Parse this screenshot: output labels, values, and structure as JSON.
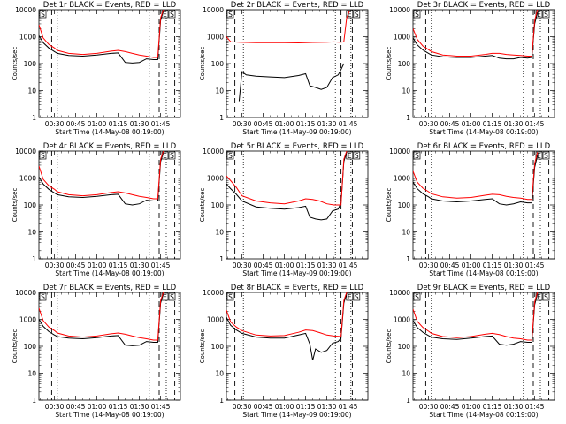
{
  "chart_data": {
    "type": "line",
    "layout": "3x3 grid",
    "y_scale": "log",
    "ylim": [
      1,
      10000
    ],
    "y_ticks": [
      "1",
      "10",
      "100",
      "1000",
      "10000"
    ],
    "x_ticks": [
      "00:30",
      "00:45",
      "01:00",
      "01:15",
      "01:30",
      "01:45"
    ],
    "x_ticks_minutes": [
      30,
      45,
      60,
      75,
      90,
      105
    ],
    "xlim_minutes": [
      19,
      119
    ],
    "ylabel": "Counts/sec",
    "legend_note": "BLACK = Events, RED = LLD",
    "series_colors": {
      "Events": "#000000",
      "LLD": "#ff0000"
    },
    "panels": [
      {
        "title": "Det 1r BLACK = Events, RED = LLD",
        "xlabel": "Start Time (14-May-08 00:19:00)",
        "markers": {
          "dashed": [
            28,
            104,
            115
          ],
          "dotted": [
            32,
            97,
            109
          ],
          "left_box_label": "S",
          "right_box_labels": [
            "E",
            "S"
          ]
        },
        "series": [
          {
            "name": "Events",
            "x": [
              19,
              22,
              26,
              30,
              32,
              40,
              50,
              60,
              70,
              75,
              80,
              85,
              90,
              95,
              100,
              103,
              105,
              107
            ],
            "y": [
              1100,
              600,
              380,
              280,
              240,
              200,
              190,
              210,
              240,
              250,
              110,
              105,
              110,
              150,
              140,
              140,
              4000,
              9000
            ]
          },
          {
            "name": "LLD",
            "x": [
              19,
              22,
              26,
              30,
              32,
              40,
              50,
              60,
              70,
              75,
              80,
              85,
              90,
              95,
              100,
              103,
              105,
              107
            ],
            "y": [
              2800,
              900,
              520,
              380,
              310,
              240,
              220,
              240,
              290,
              310,
              280,
              240,
              210,
              190,
              170,
              170,
              5000,
              10000
            ]
          }
        ]
      },
      {
        "title": "Det 2r BLACK = Events, RED = LLD",
        "xlabel": "Start Time (14-May-09 00:19:00)",
        "markers": {
          "dashed": [
            25,
            100,
            108
          ],
          "dotted": [
            31,
            96,
            107
          ],
          "left_box_label": "S",
          "right_box_labels": [
            "E",
            "S"
          ]
        },
        "series": [
          {
            "name": "Events",
            "x": [
              28,
              30,
              33,
              40,
              50,
              60,
              70,
              75,
              78,
              82,
              86,
              90,
              94,
              98,
              100,
              102
            ],
            "y": [
              4,
              50,
              38,
              34,
              32,
              30,
              36,
              42,
              15,
              13,
              11,
              13,
              30,
              38,
              60,
              100
            ]
          },
          {
            "name": "LLD",
            "x": [
              19,
              22,
              28,
              40,
              50,
              60,
              70,
              80,
              90,
              95,
              100,
              102,
              104,
              106
            ],
            "y": [
              1000,
              650,
              620,
              600,
              600,
              600,
              590,
              610,
              620,
              640,
              620,
              650,
              5000,
              9000
            ]
          }
        ]
      },
      {
        "title": "Det 3r BLACK = Events, RED = LLD",
        "xlabel": "Start Time (14-May-08 00:19:00)",
        "markers": {
          "dashed": [
            28,
            104,
            115
          ],
          "dotted": [
            32,
            97,
            109
          ],
          "left_box_label": "S",
          "right_box_labels": [
            "E",
            "S"
          ]
        },
        "series": [
          {
            "name": "Events",
            "x": [
              19,
              22,
              26,
              30,
              32,
              40,
              50,
              60,
              70,
              75,
              80,
              85,
              90,
              95,
              100,
              103,
              105,
              107
            ],
            "y": [
              900,
              500,
              320,
              240,
              210,
              180,
              170,
              170,
              190,
              200,
              160,
              150,
              150,
              170,
              160,
              170,
              3000,
              8000
            ]
          },
          {
            "name": "LLD",
            "x": [
              19,
              22,
              26,
              30,
              32,
              40,
              50,
              60,
              70,
              75,
              80,
              85,
              90,
              95,
              100,
              103,
              105,
              107
            ],
            "y": [
              2000,
              800,
              450,
              330,
              280,
              210,
              190,
              190,
              220,
              240,
              240,
              220,
              210,
              200,
              190,
              190,
              4000,
              10000
            ]
          }
        ]
      },
      {
        "title": "Det 4r BLACK = Events, RED = LLD",
        "xlabel": "Start Time (14-May-08 00:19:00)",
        "markers": {
          "dashed": [
            28,
            104,
            115
          ],
          "dotted": [
            32,
            97,
            109
          ],
          "left_box_label": "S",
          "right_box_labels": [
            "E",
            "S"
          ]
        },
        "series": [
          {
            "name": "Events",
            "x": [
              19,
              22,
              26,
              30,
              32,
              40,
              50,
              60,
              70,
              75,
              80,
              85,
              90,
              95,
              100,
              103,
              105,
              107
            ],
            "y": [
              1100,
              600,
              380,
              280,
              240,
              200,
              190,
              210,
              240,
              250,
              110,
              100,
              110,
              150,
              140,
              140,
              4000,
              9000
            ]
          },
          {
            "name": "LLD",
            "x": [
              19,
              22,
              26,
              30,
              32,
              40,
              50,
              60,
              70,
              75,
              80,
              85,
              90,
              95,
              100,
              103,
              105,
              107
            ],
            "y": [
              2800,
              900,
              520,
              380,
              310,
              240,
              220,
              240,
              290,
              310,
              280,
              240,
              210,
              190,
              170,
              170,
              5000,
              10000
            ]
          }
        ]
      },
      {
        "title": "Det 5r BLACK = Events, RED = LLD",
        "xlabel": "Start Time (14-May-09 00:19:00)",
        "markers": {
          "dashed": [
            25,
            100,
            108
          ],
          "dotted": [
            31,
            96,
            107
          ],
          "left_box_label": "S",
          "right_box_labels": [
            "E",
            "S"
          ]
        },
        "series": [
          {
            "name": "Events",
            "x": [
              19,
              22,
              26,
              30,
              40,
              50,
              60,
              70,
              75,
              78,
              82,
              86,
              90,
              94,
              98,
              100,
              102,
              104
            ],
            "y": [
              600,
              400,
              250,
              140,
              85,
              75,
              70,
              80,
              90,
              35,
              30,
              28,
              30,
              60,
              70,
              120,
              4000,
              9000
            ]
          },
          {
            "name": "LLD",
            "x": [
              19,
              22,
              26,
              30,
              40,
              50,
              60,
              70,
              75,
              80,
              85,
              90,
              95,
              100,
              102,
              104
            ],
            "y": [
              1200,
              800,
              450,
              220,
              140,
              120,
              110,
              140,
              170,
              160,
              140,
              110,
              100,
              100,
              5000,
              10000
            ]
          }
        ]
      },
      {
        "title": "Det 6r BLACK = Events, RED = LLD",
        "xlabel": "Start Time (14-May-08 00:19:00)",
        "markers": {
          "dashed": [
            28,
            104,
            115
          ],
          "dotted": [
            32,
            97,
            109
          ],
          "left_box_label": "S",
          "right_box_labels": [
            "E",
            "S"
          ]
        },
        "series": [
          {
            "name": "Events",
            "x": [
              19,
              22,
              26,
              30,
              32,
              40,
              50,
              60,
              70,
              75,
              80,
              85,
              90,
              95,
              100,
              103,
              105,
              107
            ],
            "y": [
              700,
              400,
              260,
              200,
              170,
              140,
              130,
              140,
              160,
              170,
              110,
              100,
              110,
              130,
              120,
              120,
              2500,
              7000
            ]
          },
          {
            "name": "LLD",
            "x": [
              19,
              22,
              26,
              30,
              32,
              40,
              50,
              60,
              70,
              75,
              80,
              85,
              90,
              95,
              100,
              103,
              105,
              107
            ],
            "y": [
              1800,
              700,
              420,
              310,
              260,
              200,
              180,
              190,
              230,
              250,
              240,
              210,
              190,
              180,
              160,
              160,
              3500,
              9000
            ]
          }
        ]
      },
      {
        "title": "Det 7r BLACK = Events, RED = LLD",
        "xlabel": "Start Time (14-May-08 00:19:00)",
        "markers": {
          "dashed": [
            28,
            104,
            115
          ],
          "dotted": [
            32,
            97,
            109
          ],
          "left_box_label": "S",
          "right_box_labels": [
            "E",
            "S"
          ]
        },
        "series": [
          {
            "name": "Events",
            "x": [
              19,
              22,
              26,
              30,
              32,
              40,
              50,
              60,
              70,
              75,
              80,
              85,
              90,
              95,
              100,
              103,
              105,
              107
            ],
            "y": [
              1000,
              550,
              350,
              260,
              230,
              200,
              190,
              210,
              240,
              250,
              110,
              105,
              110,
              150,
              140,
              140,
              4000,
              9000
            ]
          },
          {
            "name": "LLD",
            "x": [
              19,
              22,
              26,
              30,
              32,
              40,
              50,
              60,
              70,
              75,
              80,
              85,
              90,
              95,
              100,
              103,
              105,
              107
            ],
            "y": [
              2600,
              900,
              520,
              380,
              310,
              240,
              220,
              240,
              290,
              310,
              280,
              240,
              210,
              190,
              170,
              170,
              5000,
              10000
            ]
          }
        ]
      },
      {
        "title": "Det 8r BLACK = Events, RED = LLD",
        "xlabel": "Start Time (14-May-09 00:19:00)",
        "markers": {
          "dashed": [
            25,
            100,
            108
          ],
          "dotted": [
            31,
            96,
            107
          ],
          "left_box_label": "S",
          "right_box_labels": [
            "E",
            "S"
          ]
        },
        "series": [
          {
            "name": "Events",
            "x": [
              19,
              22,
              26,
              30,
              40,
              50,
              60,
              70,
              75,
              78,
              80,
              82,
              86,
              90,
              94,
              98,
              100,
              102,
              104
            ],
            "y": [
              1200,
              600,
              400,
              300,
              220,
              200,
              200,
              260,
              300,
              120,
              30,
              80,
              60,
              70,
              130,
              150,
              200,
              4000,
              9000
            ]
          },
          {
            "name": "LLD",
            "x": [
              19,
              22,
              26,
              30,
              40,
              50,
              60,
              70,
              75,
              80,
              85,
              90,
              95,
              100,
              102,
              104
            ],
            "y": [
              2200,
              800,
              520,
              380,
              260,
              240,
              250,
              330,
              400,
              380,
              320,
              260,
              240,
              230,
              5000,
              10000
            ]
          }
        ]
      },
      {
        "title": "Det 9r BLACK = Events, RED = LLD",
        "xlabel": "Start Time (14-May-08 00:19:00)",
        "markers": {
          "dashed": [
            28,
            104,
            115
          ],
          "dotted": [
            32,
            97,
            109
          ],
          "left_box_label": "S",
          "right_box_labels": [
            "E",
            "S"
          ]
        },
        "series": [
          {
            "name": "Events",
            "x": [
              19,
              22,
              26,
              30,
              32,
              40,
              50,
              60,
              70,
              75,
              80,
              85,
              90,
              95,
              100,
              103,
              105,
              107
            ],
            "y": [
              900,
              500,
              330,
              250,
              220,
              190,
              180,
              200,
              230,
              240,
              120,
              110,
              120,
              150,
              140,
              140,
              3500,
              9000
            ]
          },
          {
            "name": "LLD",
            "x": [
              19,
              22,
              26,
              30,
              32,
              40,
              50,
              60,
              70,
              75,
              80,
              85,
              90,
              95,
              100,
              103,
              105,
              107
            ],
            "y": [
              2400,
              850,
              500,
              360,
              300,
              230,
              210,
              230,
              280,
              300,
              270,
              230,
              200,
              190,
              170,
              170,
              4500,
              10000
            ]
          }
        ]
      }
    ]
  }
}
